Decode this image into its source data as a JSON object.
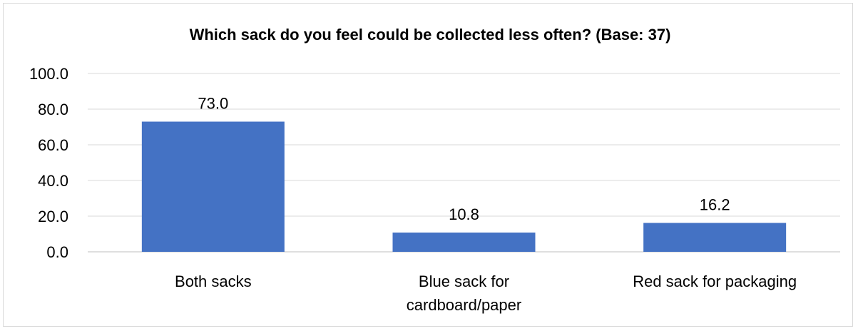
{
  "chart_data": {
    "type": "bar",
    "title": "Which sack do you feel could be collected less often? (Base: 37)",
    "categories": [
      [
        "Both sacks"
      ],
      [
        "Blue sack for",
        "cardboard/paper"
      ],
      [
        "Red sack for packaging"
      ]
    ],
    "values": [
      73.0,
      10.8,
      16.2
    ],
    "data_labels": [
      "73.0",
      "10.8",
      "16.2"
    ],
    "y_ticks": [
      "0.0",
      "20.0",
      "40.0",
      "60.0",
      "80.0",
      "100.0"
    ],
    "y_tick_values": [
      0,
      20,
      40,
      60,
      80,
      100
    ],
    "ylim": [
      0,
      100
    ],
    "grid": true,
    "legend": "none",
    "bar_color": "#4472C4",
    "gridline_color": "#d9d9d9"
  }
}
